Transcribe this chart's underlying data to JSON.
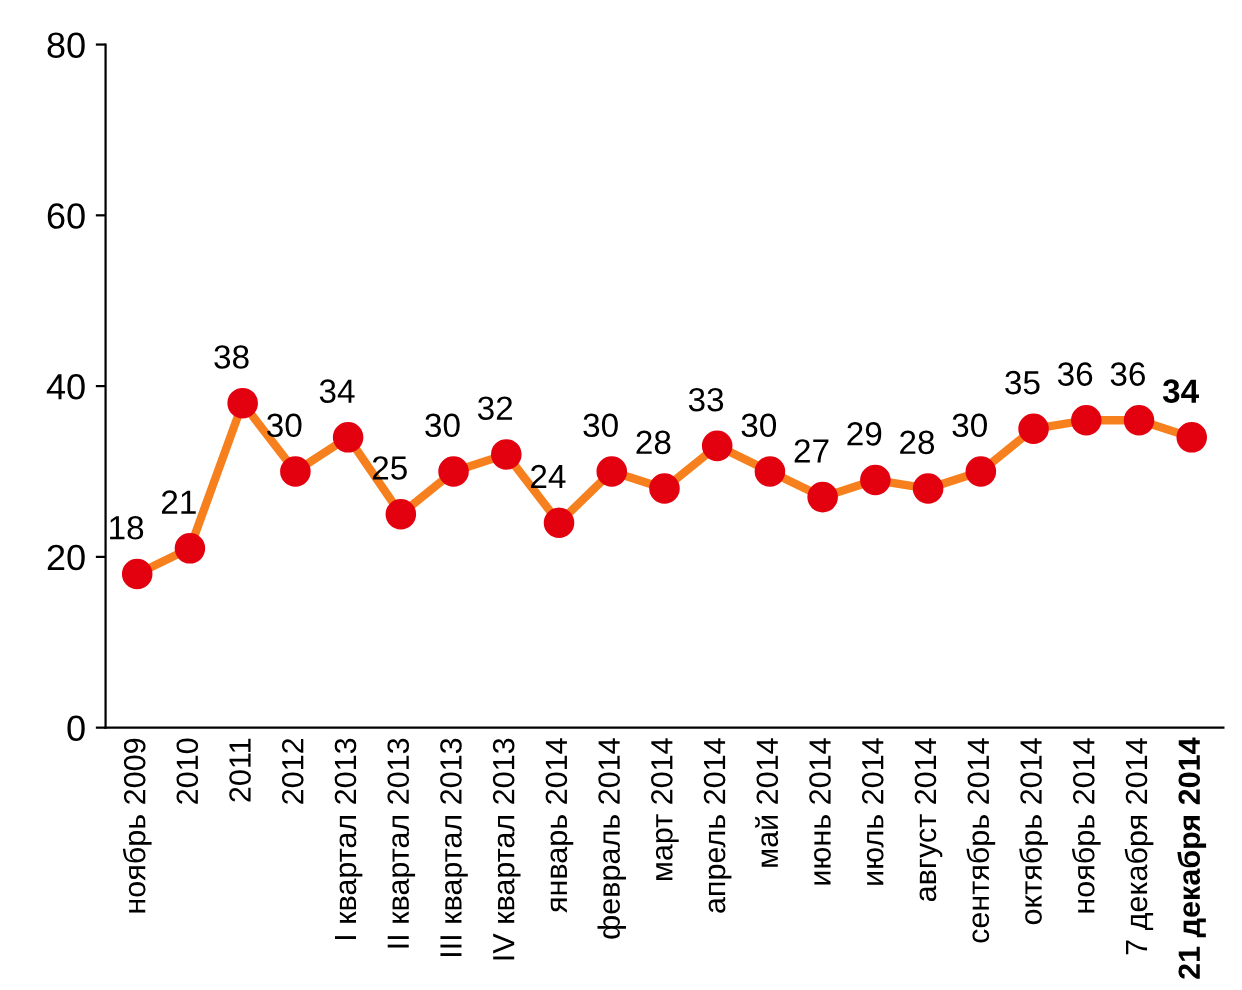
{
  "chart_data": {
    "type": "line",
    "categories": [
      "ноябрь 2009",
      "2010",
      "2011",
      "2012",
      "I квартал 2013",
      "II квартал 2013",
      "III квартал 2013",
      "IV квартал 2013",
      "январь 2014",
      "февраль 2014",
      "март 2014",
      "апрель 2014",
      "май 2014",
      "июнь 2014",
      "июль 2014",
      "август 2014",
      "сентябрь 2014",
      "октябрь 2014",
      "ноябрь 2014",
      "7 декабря 2014",
      "21 декабря 2014"
    ],
    "series": [
      {
        "color": "#f7801e",
        "colors": [
          "#e3000f",
          "#e3000f",
          "#e3000f",
          "#e3000f",
          "#e3000f",
          "#e3000f",
          "#e3000f",
          "#e3000f",
          "#e3000f",
          "#e3000f",
          "#e3000f",
          "#e3000f",
          "#e3000f",
          "#e3000f",
          "#e3000f",
          "#e3000f",
          "#e3000f",
          "#e3000f",
          "#e3000f",
          "#e3000f",
          "#e3000f"
        ],
        "values": [
          18,
          21,
          38,
          30,
          34,
          25,
          30,
          32,
          24,
          30,
          28,
          33,
          30,
          27,
          29,
          28,
          30,
          35,
          36,
          36,
          34
        ]
      }
    ],
    "ylim": [
      0,
      80
    ],
    "yticks": [
      0,
      20,
      40,
      60,
      80
    ],
    "grid": false,
    "marker": "circle",
    "line_style": "solid",
    "data_labels": true
  }
}
